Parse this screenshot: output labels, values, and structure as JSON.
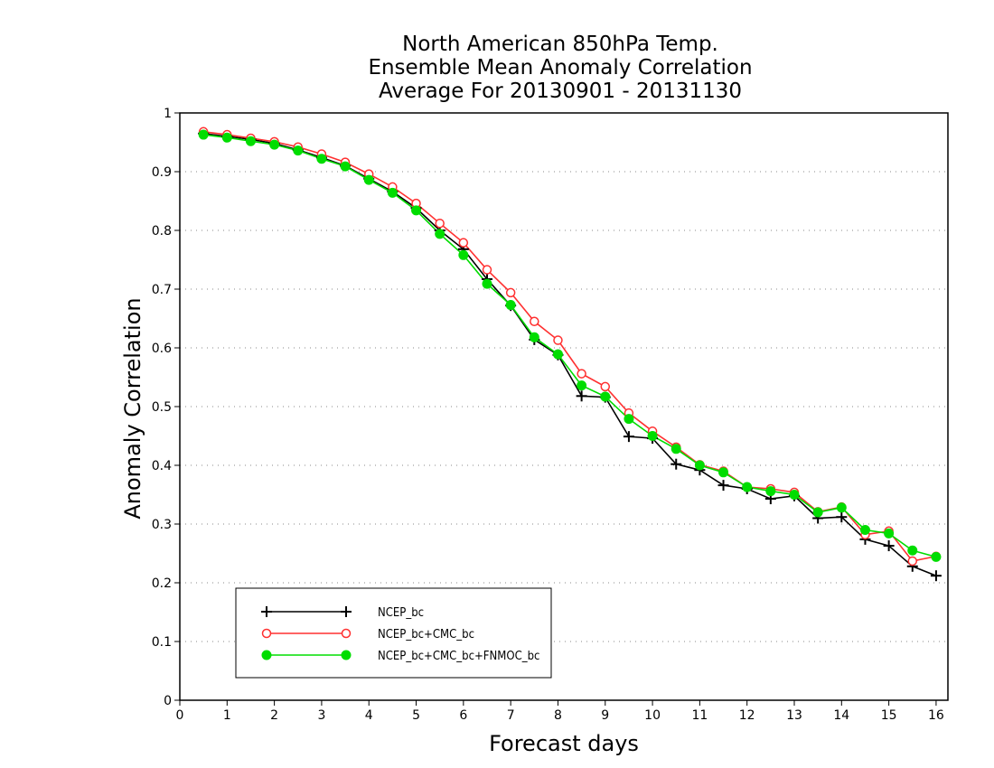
{
  "chart_data": {
    "type": "line",
    "title_lines": [
      "North American 850hPa Temp.",
      "Ensemble Mean Anomaly Correlation",
      "Average For 20130901 - 20131130"
    ],
    "xlabel": "Forecast days",
    "ylabel": "Anomaly Correlation",
    "xlim": [
      0,
      16.25
    ],
    "ylim": [
      0,
      1
    ],
    "xticks": [
      "0",
      "1",
      "2",
      "3",
      "4",
      "5",
      "6",
      "7",
      "8",
      "9",
      "10",
      "11",
      "12",
      "13",
      "14",
      "15",
      "16"
    ],
    "yticks": [
      "0",
      "0.1",
      "0.2",
      "0.3",
      "0.4",
      "0.5",
      "0.6",
      "0.7",
      "0.8",
      "0.9",
      "1"
    ],
    "grid": true,
    "legend_position": "bottom-left",
    "x": [
      0.5,
      1,
      1.5,
      2,
      2.5,
      3,
      3.5,
      4,
      4.5,
      5,
      5.5,
      6,
      6.5,
      7,
      7.5,
      8,
      8.5,
      9,
      9.5,
      10,
      10.5,
      11,
      11.5,
      12,
      12.5,
      13,
      13.5,
      14,
      14.5,
      15,
      15.5,
      16
    ],
    "series": [
      {
        "name": "NCEP_bc",
        "color": "#000000",
        "marker": "plus",
        "values": [
          0.965,
          0.96,
          0.955,
          0.948,
          0.937,
          0.924,
          0.91,
          0.888,
          0.866,
          0.838,
          0.8,
          0.768,
          0.717,
          0.672,
          0.614,
          0.588,
          0.518,
          0.516,
          0.449,
          0.446,
          0.402,
          0.392,
          0.366,
          0.36,
          0.343,
          0.348,
          0.31,
          0.312,
          0.274,
          0.263,
          0.228,
          0.212
        ]
      },
      {
        "name": "NCEP_bc+CMC_bc",
        "color": "#ff3030",
        "marker": "open-circle",
        "values": [
          0.968,
          0.963,
          0.957,
          0.951,
          0.942,
          0.93,
          0.916,
          0.896,
          0.874,
          0.846,
          0.812,
          0.779,
          0.733,
          0.694,
          0.645,
          0.613,
          0.556,
          0.534,
          0.489,
          0.458,
          0.431,
          0.401,
          0.39,
          0.363,
          0.36,
          0.354,
          0.321,
          0.329,
          0.282,
          0.288,
          0.237,
          0.245
        ]
      },
      {
        "name": "NCEP_bc+CMC_bc+FNMOC_bc",
        "color": "#00dd00",
        "marker": "filled-circle",
        "values": [
          0.963,
          0.958,
          0.952,
          0.946,
          0.936,
          0.922,
          0.909,
          0.886,
          0.864,
          0.834,
          0.794,
          0.758,
          0.709,
          0.673,
          0.618,
          0.589,
          0.536,
          0.517,
          0.479,
          0.45,
          0.428,
          0.4,
          0.388,
          0.363,
          0.356,
          0.35,
          0.32,
          0.328,
          0.29,
          0.284,
          0.255,
          0.244
        ]
      }
    ]
  }
}
